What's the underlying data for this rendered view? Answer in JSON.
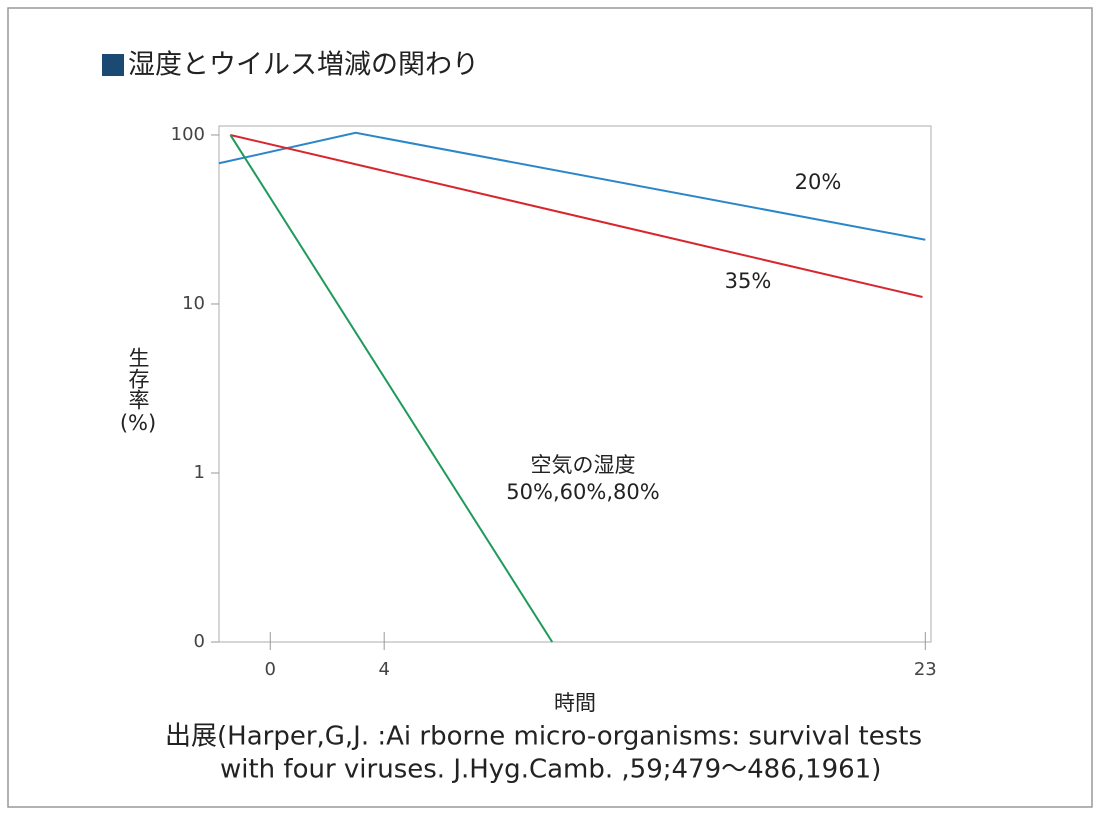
{
  "chart_data": {
    "type": "line",
    "title": "湿度とウイルス増減の関わり",
    "y_label": "生存率",
    "y_unit": "(%)",
    "x_label": "時間",
    "source": [
      "出展(Harper,G,J. :Ai rborne micro-organisms: survival tests",
      "with four viruses. J.Hyg.Camb. ,59;479〜486,1961)"
    ],
    "annotation": "空気の湿度",
    "log_y": true,
    "xlim": [
      -1.8,
      23.2
    ],
    "xticks": [
      0,
      4,
      23
    ],
    "ylim": [
      0.1,
      113
    ],
    "yticks": [
      {
        "value": 0.1,
        "label": "0"
      },
      1,
      10,
      100
    ],
    "series": [
      {
        "name": "20%",
        "color": "#2b86c9",
        "x": [
          -1.8,
          3,
          23
        ],
        "values": [
          68,
          103,
          24
        ]
      },
      {
        "name": "35%",
        "color": "#d8262e",
        "x": [
          -1.4,
          22.9
        ],
        "values": [
          100,
          11
        ]
      },
      {
        "name": "50%,60%,80%",
        "color": "#1f9a5a",
        "x": [
          -1.4,
          9.9
        ],
        "values": [
          100,
          0.1
        ]
      }
    ]
  }
}
